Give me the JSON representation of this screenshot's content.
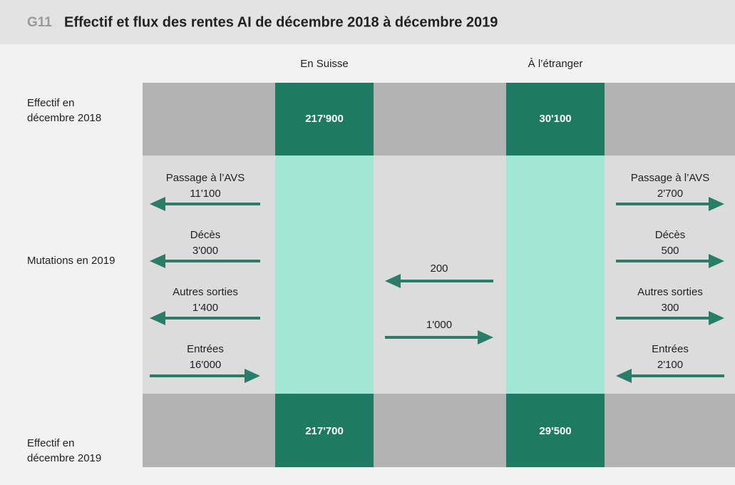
{
  "header": {
    "code": "G11",
    "title": "Effectif et flux des rentes AI de décembre 2018 à décembre 2019"
  },
  "columns": [
    "En Suisse",
    "À l’étranger"
  ],
  "rows": {
    "start": "Effectif en\ndécembre 2018",
    "mutations": "Mutations en 2019",
    "end": "Effectif en\ndécembre 2019"
  },
  "stock_2018": [
    "217'900",
    "30'100"
  ],
  "stock_2019": [
    "217'700",
    "29'500"
  ],
  "flows_suisse": [
    {
      "label": "Passage à l’AVS",
      "value": "11'100"
    },
    {
      "label": "Décès",
      "value": "3'000"
    },
    {
      "label": "Autres sorties",
      "value": "1'400"
    },
    {
      "label": "Entrées",
      "value": "16'000"
    }
  ],
  "flows_between": [
    {
      "value": "200"
    },
    {
      "value": "1'000"
    }
  ],
  "flows_etranger": [
    {
      "label": "Passage à l’AVS",
      "value": "2'700"
    },
    {
      "label": "Décès",
      "value": "500"
    },
    {
      "label": "Autres sorties",
      "value": "300"
    },
    {
      "label": "Entrées",
      "value": "2'100"
    }
  ]
}
